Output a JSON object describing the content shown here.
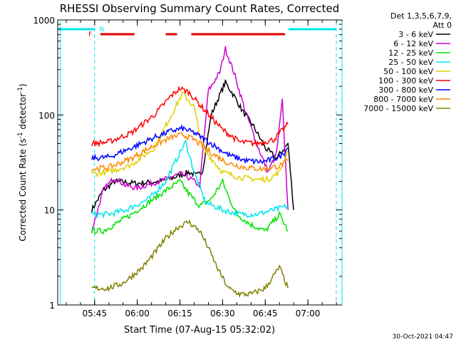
{
  "chart_data": {
    "type": "line",
    "title": "RHESSI Observing Summary Count Rates, Corrected",
    "xlabel": "Start Time (07-Aug-15 05:32:02)",
    "ylabel": "Corrected Count Rate (s",
    "ylabel_sup": "-1",
    "ylabel_tail": " detector",
    "ylabel_tail_sup": "-1",
    "ylabel_close": ")",
    "yscale": "log",
    "ylim": [
      1,
      1000
    ],
    "xlim": [
      "05:32:02",
      "07:12:00"
    ],
    "xticks": [
      "05:45",
      "06:00",
      "06:15",
      "06:30",
      "06:45",
      "07:00"
    ],
    "yticks": [
      "1",
      "10",
      "100",
      "1000"
    ],
    "detectors": "Det 1,3,5,6,7,9,",
    "attenuator": "Att 0",
    "timestamp": "30-Oct-2021 04:47",
    "flags": {
      "night_markers": [
        "05:33",
        "07:12"
      ],
      "saa_dashed": [
        "05:45",
        "07:10"
      ],
      "flare_flag_letter": "F",
      "night_flag_letter": "N",
      "flare_segments": [
        [
          "05:47",
          "05:59"
        ],
        [
          "06:10",
          "06:14"
        ],
        [
          "06:19",
          "06:52"
        ]
      ],
      "flare_color": "#e00000",
      "night_color": "#00e5ee"
    },
    "series": [
      {
        "name": "3 - 6 keV",
        "color": "#000000",
        "x": [
          "05:44",
          "05:48",
          "05:52",
          "06:00",
          "06:08",
          "06:13",
          "06:18",
          "06:21",
          "06:23",
          "06:26",
          "06:30",
          "06:31",
          "06:34",
          "06:37",
          "06:41",
          "06:45",
          "06:49",
          "06:53",
          "06:55"
        ],
        "values": [
          10,
          16,
          20,
          19,
          20,
          22,
          25,
          23,
          26,
          100,
          190,
          220,
          160,
          110,
          75,
          45,
          35,
          50,
          10
        ]
      },
      {
        "name": "6 - 12 keV",
        "color": "#cc00cc",
        "x": [
          "05:44",
          "05:48",
          "05:52",
          "05:56",
          "06:00",
          "06:05",
          "06:10",
          "06:15",
          "06:18",
          "06:20",
          "06:22",
          "06:25",
          "06:29",
          "06:31",
          "06:34",
          "06:38",
          "06:42",
          "06:46",
          "06:49",
          "06:51",
          "06:53"
        ],
        "values": [
          6,
          16,
          22,
          18,
          17,
          19,
          21,
          24,
          22,
          20,
          18,
          180,
          280,
          500,
          280,
          110,
          50,
          25,
          40,
          140,
          10
        ]
      },
      {
        "name": "12 - 25 keV",
        "color": "#00e000",
        "x": [
          "05:44",
          "05:48",
          "05:52",
          "05:58",
          "06:04",
          "06:10",
          "06:15",
          "06:18",
          "06:22",
          "06:26",
          "06:30",
          "06:32",
          "06:35",
          "06:40",
          "06:45",
          "06:50",
          "06:53"
        ],
        "values": [
          6,
          6,
          7,
          9,
          12,
          16,
          20,
          15,
          11,
          13,
          20,
          14,
          9,
          7,
          6,
          9,
          6
        ]
      },
      {
        "name": "25 - 50 keV",
        "color": "#00e5ee",
        "x": [
          "05:44",
          "05:50",
          "05:56",
          "06:04",
          "06:10",
          "06:15",
          "06:17",
          "06:20",
          "06:24",
          "06:30",
          "06:36",
          "06:42",
          "06:48",
          "06:53"
        ],
        "values": [
          9,
          9,
          10,
          13,
          20,
          40,
          52,
          25,
          12,
          10,
          9,
          9,
          10,
          11
        ]
      },
      {
        "name": "50 - 100 keV",
        "color": "#e0d000",
        "x": [
          "05:44",
          "05:50",
          "05:58",
          "06:06",
          "06:12",
          "06:16",
          "06:20",
          "06:23",
          "06:30",
          "06:36",
          "06:42",
          "06:46",
          "06:50",
          "06:53"
        ],
        "values": [
          24,
          25,
          30,
          45,
          100,
          170,
          120,
          45,
          25,
          22,
          21,
          21,
          25,
          42
        ]
      },
      {
        "name": "100 - 300 keV",
        "color": "#ff0000",
        "x": [
          "05:44",
          "05:50",
          "05:58",
          "06:06",
          "06:12",
          "06:15",
          "06:18",
          "06:24",
          "06:30",
          "06:36",
          "06:42",
          "06:48",
          "06:53"
        ],
        "values": [
          50,
          52,
          65,
          100,
          160,
          190,
          175,
          110,
          70,
          52,
          50,
          55,
          80
        ]
      },
      {
        "name": "300 - 800 keV",
        "color": "#0000ff",
        "x": [
          "05:44",
          "05:50",
          "05:58",
          "06:06",
          "06:12",
          "06:16",
          "06:20",
          "06:26",
          "06:32",
          "06:38",
          "06:44",
          "06:50",
          "06:53"
        ],
        "values": [
          35,
          36,
          45,
          58,
          68,
          72,
          65,
          50,
          38,
          33,
          32,
          36,
          45
        ]
      },
      {
        "name": "800 - 7000 keV",
        "color": "#ff8800",
        "x": [
          "05:44",
          "05:50",
          "05:58",
          "06:06",
          "06:12",
          "06:16",
          "06:20",
          "06:26",
          "06:32",
          "06:38",
          "06:44",
          "06:50",
          "06:53"
        ],
        "values": [
          27,
          28,
          35,
          48,
          58,
          62,
          55,
          40,
          31,
          28,
          27,
          29,
          33
        ]
      },
      {
        "name": "7000 - 15000 keV",
        "color": "#808000",
        "x": [
          "05:44",
          "05:50",
          "05:55",
          "05:58",
          "06:02",
          "06:06",
          "06:10",
          "06:14",
          "06:18",
          "06:22",
          "06:25",
          "06:28",
          "06:32",
          "06:36",
          "06:40",
          "06:45",
          "06:50",
          "06:53"
        ],
        "values": [
          1.5,
          1.5,
          1.7,
          2.0,
          2.5,
          3.5,
          5,
          6.5,
          7.5,
          6,
          4,
          2.5,
          1.5,
          1.3,
          1.3,
          1.5,
          2.5,
          1.5
        ]
      }
    ]
  }
}
